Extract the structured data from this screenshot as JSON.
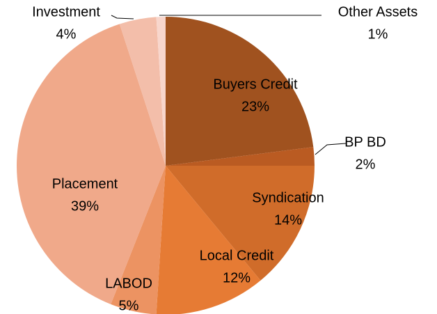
{
  "chart_data": {
    "type": "pie",
    "categories": [
      "Buyers Credit",
      "BP BD",
      "Syndication",
      "Local Credit",
      "LABOD",
      "Placement",
      "Investment",
      "Other Assets"
    ],
    "values": [
      23,
      2,
      14,
      12,
      5,
      39,
      4,
      1
    ],
    "value_labels": [
      "23%",
      "2%",
      "14%",
      "12%",
      "5%",
      "39%",
      "4%",
      "1%"
    ],
    "colors": [
      "#A0521F",
      "#BA5B22",
      "#D06C2A",
      "#E67B34",
      "#EC9362",
      "#F0A98A",
      "#F3BEAA",
      "#F8D6CC"
    ]
  }
}
